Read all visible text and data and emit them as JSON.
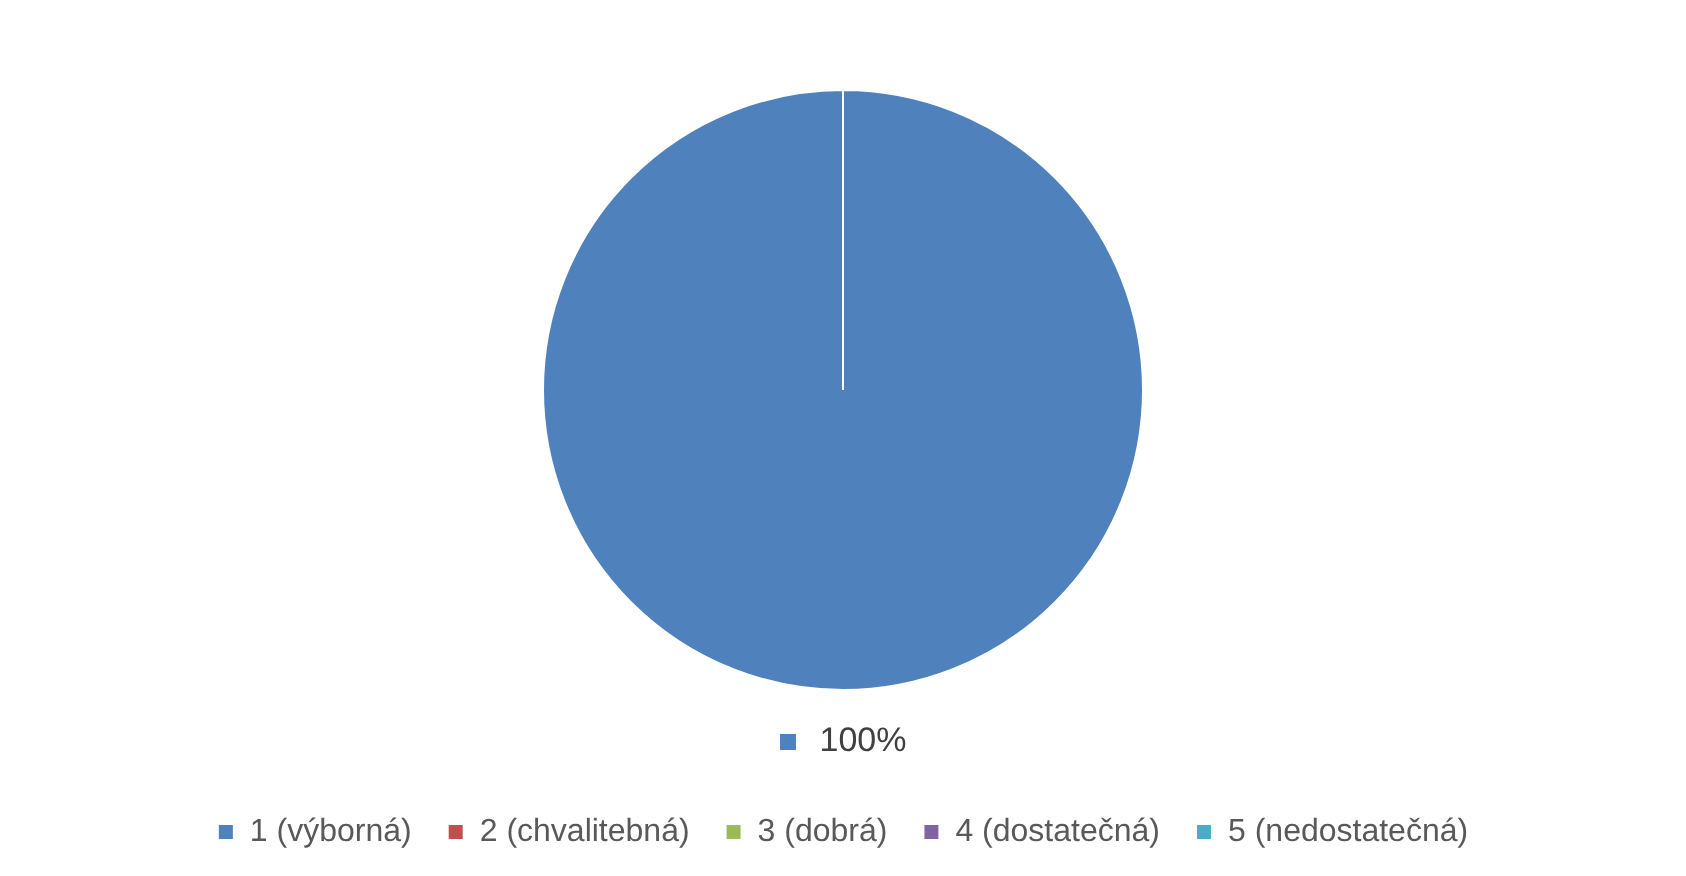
{
  "chart_data": {
    "type": "pie",
    "categories": [
      "1 (výborná)",
      "2 (chvalitebná)",
      "3 (dobrá)",
      "4 (dostatečná)",
      "5 (nedostatečná)"
    ],
    "values": [
      100,
      0,
      0,
      0,
      0
    ],
    "colors": [
      "#4f81bd",
      "#c0504d",
      "#9bbb59",
      "#8064a2",
      "#4bacc6"
    ],
    "value_labels": [
      "100%",
      null,
      null,
      null,
      null
    ],
    "legend": "bottom"
  }
}
